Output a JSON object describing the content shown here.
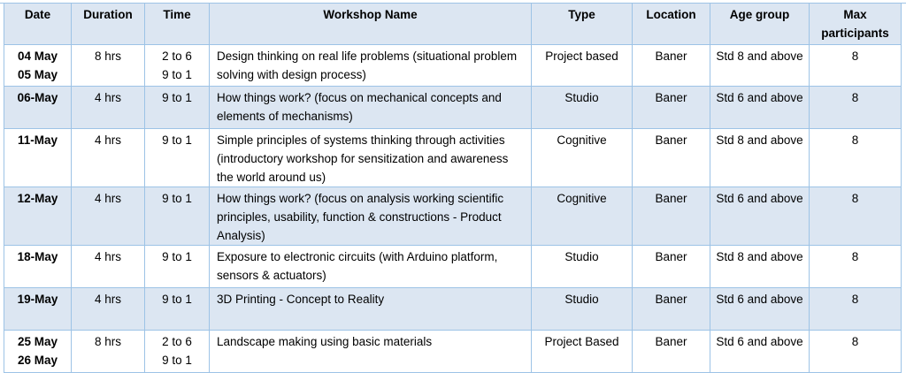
{
  "headers": [
    "Date",
    "Duration",
    "Time",
    "Workshop Name",
    "Type",
    "Location",
    "Age group",
    "Max participants"
  ],
  "rows": [
    {
      "date": "04 May\n05 May",
      "duration": "8 hrs",
      "time": "2 to 6\n9 to 1",
      "name": "Design thinking on real life problems (situational problem solving with design process)",
      "type": "Project based",
      "location": "Baner",
      "age": "Std 8 and above",
      "max": "8"
    },
    {
      "date": "06-May",
      "duration": "4 hrs",
      "time": "9 to 1",
      "name": "How things work? (focus on mechanical concepts and elements of mechanisms)",
      "type": "Studio",
      "location": "Baner",
      "age": "Std 6 and above",
      "max": "8"
    },
    {
      "date": "11-May",
      "duration": "4 hrs",
      "time": "9 to 1",
      "name": "Simple principles of systems thinking through activities (introductory workshop for sensitization and awareness the world around us)",
      "type": "Cognitive",
      "location": "Baner",
      "age": "Std 8 and above",
      "max": "8"
    },
    {
      "date": "12-May",
      "duration": "4 hrs",
      "time": "9 to 1",
      "name": "How things work? (focus on analysis working scientific principles, usability, function & constructions - Product Analysis)",
      "type": "Cognitive",
      "location": "Baner",
      "age": "Std 6 and above",
      "max": "8"
    },
    {
      "date": "18-May",
      "duration": "4 hrs",
      "time": "9 to 1",
      "name": "Exposure to electronic circuits (with Arduino platform, sensors & actuators)",
      "type": "Studio",
      "location": "Baner",
      "age": "Std 8 and above",
      "max": "8"
    },
    {
      "date": "19-May",
      "duration": "4 hrs",
      "time": "9 to 1",
      "name": "3D Printing - Concept to Reality",
      "type": "Studio",
      "location": "Baner",
      "age": "Std 6 and above",
      "max": "8"
    },
    {
      "date": "25 May\n26 May",
      "duration": "8 hrs",
      "time": "2 to 6\n9 to 1",
      "name": "Landscape making using basic materials",
      "type": "Project Based",
      "location": "Baner",
      "age": "Std 6 and above",
      "max": "8"
    }
  ]
}
